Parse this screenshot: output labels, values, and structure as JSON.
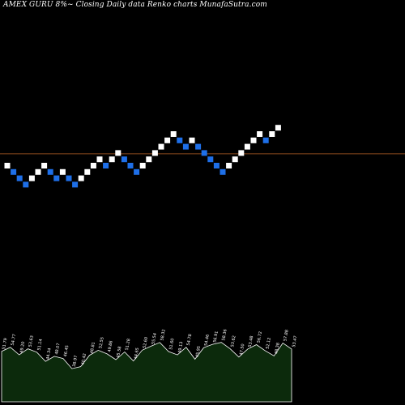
{
  "title": "AMEX  GURU 8%~  Closing Daily data  Renko  charts MunafaSutra.com",
  "colors": {
    "background": "#000000",
    "up_brick": "#ffffff",
    "down_brick": "#1e6fe8",
    "reference_line": "#8b4a1e",
    "volume_fill": "#0c2a0c",
    "volume_outline": "#ffffff",
    "label": "#ffffff"
  },
  "chart_data": {
    "type": "renko",
    "title": "AMEX  GURU 8%~  Closing Daily data  Renko  charts MunafaSutra.com",
    "brick_directions": [
      "up",
      "down",
      "down",
      "down",
      "up",
      "up",
      "up",
      "down",
      "down",
      "up",
      "down",
      "down",
      "up",
      "up",
      "up",
      "up",
      "down",
      "up",
      "up",
      "down",
      "down",
      "down",
      "up",
      "up",
      "up",
      "up",
      "up",
      "up",
      "down",
      "down",
      "up",
      "down",
      "down",
      "down",
      "down",
      "down",
      "up",
      "up",
      "up",
      "up",
      "up",
      "up",
      "down",
      "up",
      "up"
    ],
    "brick_levels": [
      5,
      4,
      3,
      2,
      3,
      4,
      5,
      4,
      3,
      4,
      3,
      2,
      3,
      4,
      5,
      6,
      5,
      6,
      7,
      6,
      5,
      4,
      5,
      6,
      7,
      8,
      9,
      10,
      9,
      8,
      9,
      8,
      7,
      6,
      5,
      4,
      5,
      6,
      7,
      8,
      9,
      10,
      9,
      10,
      11
    ],
    "reference_level": 7.0,
    "volume_labels": [
      "51.79",
      "54.77",
      "49.20",
      "53.63",
      "51.14",
      "44.34",
      "48.07",
      "46.45",
      "38.97",
      "40.42",
      "48.81",
      "52.55",
      "49.86",
      "45.58",
      "51.28",
      "44.65",
      "52.60",
      "55.54",
      "58.32",
      "51.60",
      "49.13",
      "54.78",
      "45.95",
      "54.46",
      "56.91",
      "58.36",
      "53.62",
      "47.50",
      "53.48",
      "56.72",
      "52.12",
      "48.38",
      "57.88",
      "53.47"
    ]
  }
}
